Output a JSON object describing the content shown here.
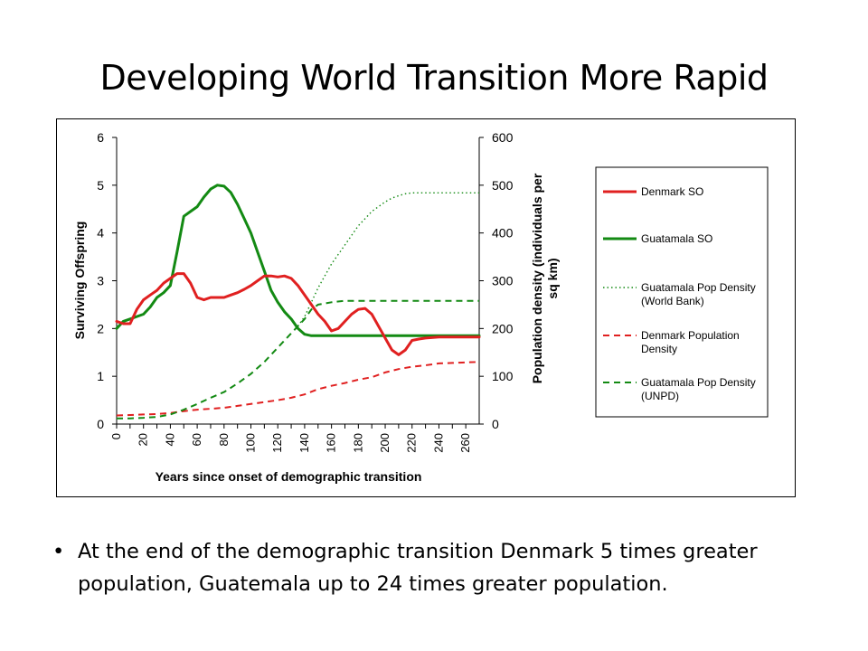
{
  "slide": {
    "title": "Developing World Transition More Rapid",
    "bullet": "At the end of the demographic transition Denmark 5 times greater population, Guatemala up to 24 times greater population.",
    "bullet_marker": "•"
  },
  "chart_data": {
    "type": "line",
    "xlabel": "Years since onset of demographic transition",
    "ylabel": "Surviving Offspring",
    "y2label": "Population density (individuals per sq km)",
    "xlim": [
      0,
      270
    ],
    "ylim": [
      0,
      6
    ],
    "y2lim": [
      0,
      600
    ],
    "x_ticks": [
      "0",
      "10",
      "20",
      "30",
      "40",
      "50",
      "60",
      "70",
      "80",
      "90",
      "100",
      "110",
      "120",
      "130",
      "140",
      "150",
      "160",
      "170",
      "180",
      "190",
      "200",
      "210",
      "220",
      "230",
      "240",
      "250",
      "260"
    ],
    "x_tick_labels_shown": [
      "0",
      "20",
      "40",
      "60",
      "80",
      "100",
      "120",
      "140",
      "160",
      "180",
      "200",
      "220",
      "240",
      "260"
    ],
    "y_ticks": [
      "0",
      "1",
      "2",
      "3",
      "4",
      "5",
      "6"
    ],
    "y2_ticks": [
      "0",
      "100",
      "200",
      "300",
      "400",
      "500",
      "600"
    ],
    "legend_position": "right",
    "series": [
      {
        "name": "Denmark SO",
        "axis": "left",
        "color": "#e02020",
        "style": "solid",
        "x": [
          0,
          5,
          10,
          15,
          20,
          25,
          30,
          35,
          40,
          45,
          50,
          55,
          60,
          65,
          70,
          75,
          80,
          85,
          90,
          95,
          100,
          105,
          110,
          115,
          120,
          125,
          130,
          135,
          140,
          145,
          150,
          155,
          160,
          165,
          170,
          175,
          180,
          185,
          190,
          195,
          200,
          205,
          210,
          215,
          220,
          225,
          230,
          240,
          250,
          260,
          270
        ],
        "values": [
          2.15,
          2.1,
          2.1,
          2.4,
          2.6,
          2.7,
          2.8,
          2.95,
          3.05,
          3.15,
          3.15,
          2.95,
          2.65,
          2.6,
          2.65,
          2.65,
          2.65,
          2.7,
          2.75,
          2.82,
          2.9,
          3.0,
          3.1,
          3.1,
          3.08,
          3.1,
          3.05,
          2.9,
          2.7,
          2.5,
          2.3,
          2.15,
          1.95,
          2.0,
          2.15,
          2.3,
          2.4,
          2.42,
          2.3,
          2.05,
          1.8,
          1.55,
          1.45,
          1.55,
          1.75,
          1.78,
          1.8,
          1.82,
          1.82,
          1.82,
          1.82
        ]
      },
      {
        "name": "Guatamala SO",
        "axis": "left",
        "color": "#138a13",
        "style": "solid",
        "x": [
          0,
          5,
          10,
          15,
          20,
          25,
          30,
          35,
          40,
          45,
          50,
          55,
          60,
          65,
          70,
          75,
          80,
          85,
          90,
          95,
          100,
          105,
          110,
          115,
          120,
          125,
          130,
          135,
          140,
          145,
          150,
          160,
          180,
          200,
          220,
          240,
          260,
          270
        ],
        "values": [
          2.0,
          2.15,
          2.2,
          2.25,
          2.3,
          2.45,
          2.65,
          2.75,
          2.9,
          3.6,
          4.35,
          4.45,
          4.55,
          4.75,
          4.92,
          5.0,
          4.98,
          4.85,
          4.6,
          4.3,
          4.0,
          3.6,
          3.2,
          2.8,
          2.55,
          2.35,
          2.2,
          2.0,
          1.88,
          1.85,
          1.85,
          1.85,
          1.85,
          1.85,
          1.85,
          1.85,
          1.85,
          1.85
        ]
      },
      {
        "name": "Guatamala Pop Density (World Bank)",
        "axis": "right",
        "color": "#138a13",
        "style": "dotted",
        "x": [
          135,
          140,
          145,
          150,
          155,
          160,
          165,
          170,
          175,
          180,
          185,
          190,
          195,
          200,
          205,
          210,
          215,
          220,
          230,
          240,
          250,
          260,
          270
        ],
        "values": [
          205,
          225,
          255,
          285,
          310,
          335,
          355,
          375,
          395,
          415,
          430,
          445,
          455,
          465,
          473,
          478,
          482,
          484,
          484,
          484,
          484,
          484,
          484
        ]
      },
      {
        "name": "Denmark Population Density",
        "axis": "right",
        "color": "#e02020",
        "style": "dashed",
        "x": [
          0,
          10,
          20,
          30,
          40,
          50,
          60,
          70,
          80,
          90,
          100,
          110,
          120,
          130,
          140,
          150,
          160,
          170,
          180,
          190,
          200,
          210,
          220,
          230,
          240,
          250,
          260,
          270
        ],
        "values": [
          18,
          19,
          20,
          21,
          23,
          27,
          30,
          32,
          34,
          38,
          42,
          46,
          50,
          55,
          62,
          73,
          80,
          86,
          93,
          98,
          108,
          115,
          120,
          123,
          127,
          128,
          129,
          130
        ]
      },
      {
        "name": "Guatamala Pop Density (UNPD)",
        "axis": "right",
        "color": "#138a13",
        "style": "dashed",
        "x": [
          0,
          10,
          20,
          30,
          40,
          50,
          60,
          70,
          80,
          90,
          100,
          110,
          120,
          130,
          140,
          145,
          150,
          160,
          170,
          180,
          200,
          220,
          240,
          260,
          270
        ],
        "values": [
          12,
          12,
          13,
          15,
          20,
          30,
          42,
          55,
          67,
          85,
          105,
          130,
          160,
          190,
          220,
          240,
          250,
          255,
          258,
          258,
          258,
          258,
          258,
          258,
          258
        ]
      }
    ]
  }
}
